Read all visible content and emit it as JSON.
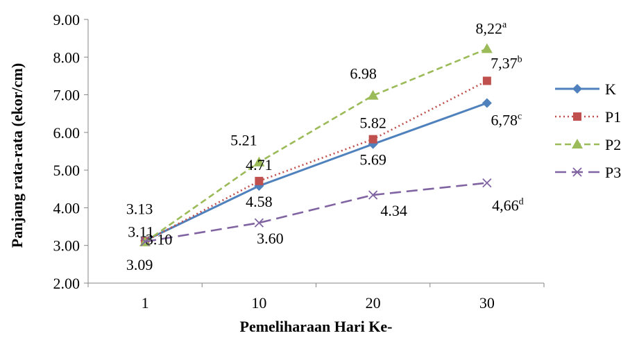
{
  "chart_data": {
    "type": "line",
    "title": "",
    "xlabel": "Pemeliharaan Hari Ke-",
    "ylabel": "Panjang rata-rata  (ekor/cm)",
    "categories": [
      "1",
      "10",
      "20",
      "30"
    ],
    "ylim": [
      2.0,
      9.0
    ],
    "ytick_step": 1.0,
    "ytick_labels": [
      "2.00",
      "3.00",
      "4.00",
      "5.00",
      "6.00",
      "7.00",
      "8.00",
      "9.00"
    ],
    "grid": false,
    "legend_position": "right",
    "series": [
      {
        "name": "K",
        "values": [
          3.13,
          4.58,
          5.69,
          6.78
        ],
        "labels": [
          "3.13",
          "4.58",
          "5.69",
          "6,78"
        ],
        "superscripts": [
          "",
          "",
          "",
          "c"
        ],
        "color": "#4f81bd",
        "line_style": "solid",
        "marker": "diamond"
      },
      {
        "name": "P1",
        "values": [
          3.11,
          4.71,
          5.82,
          7.37
        ],
        "labels": [
          "3.11",
          "4.71",
          "5.82",
          "7,37"
        ],
        "superscripts": [
          "",
          "",
          "",
          "b"
        ],
        "color": "#c0504d",
        "line_style": "dotted",
        "marker": "square"
      },
      {
        "name": "P2",
        "values": [
          3.09,
          5.21,
          6.98,
          8.22
        ],
        "labels": [
          "3.09",
          "5.21",
          "6.98",
          "8,22"
        ],
        "superscripts": [
          "",
          "",
          "",
          "a"
        ],
        "color": "#9bbb59",
        "line_style": "dashed",
        "marker": "triangle"
      },
      {
        "name": "P3",
        "values": [
          3.1,
          3.6,
          4.34,
          4.66
        ],
        "labels": [
          "3.10",
          "3.60",
          "4.34",
          "4,66"
        ],
        "superscripts": [
          "",
          "",
          "",
          "d"
        ],
        "color": "#8064a2",
        "line_style": "long-dash",
        "marker": "x"
      }
    ]
  }
}
